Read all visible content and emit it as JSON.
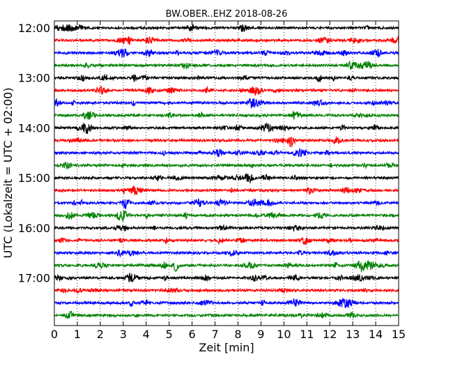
{
  "chart_data": {
    "type": "line",
    "title": "BW.OBER..EHZ 2018-08-26",
    "xlabel": "Zeit  [min]",
    "ylabel": "UTC (Lokalzeit = UTC + 02:00)",
    "xlim": [
      0,
      15
    ],
    "x_ticks": [
      "0",
      "1",
      "2",
      "3",
      "4",
      "5",
      "6",
      "7",
      "8",
      "9",
      "10",
      "11",
      "12",
      "13",
      "14",
      "15"
    ],
    "y_tick_labels": [
      "12:00",
      "13:00",
      "14:00",
      "15:00",
      "16:00",
      "17:00"
    ],
    "grid": "vertical dotted",
    "trace_colors": [
      "#000000",
      "#ff0000",
      "#0000ff",
      "#008000"
    ],
    "series": [
      {
        "start": "12:00",
        "color": "#000000"
      },
      {
        "start": "12:15",
        "color": "#ff0000"
      },
      {
        "start": "12:30",
        "color": "#0000ff"
      },
      {
        "start": "12:45",
        "color": "#008000"
      },
      {
        "start": "13:00",
        "color": "#000000"
      },
      {
        "start": "13:15",
        "color": "#ff0000"
      },
      {
        "start": "13:30",
        "color": "#0000ff"
      },
      {
        "start": "13:45",
        "color": "#008000"
      },
      {
        "start": "14:00",
        "color": "#000000"
      },
      {
        "start": "14:15",
        "color": "#ff0000"
      },
      {
        "start": "14:30",
        "color": "#0000ff"
      },
      {
        "start": "14:45",
        "color": "#008000"
      },
      {
        "start": "15:00",
        "color": "#000000"
      },
      {
        "start": "15:15",
        "color": "#ff0000"
      },
      {
        "start": "15:30",
        "color": "#0000ff"
      },
      {
        "start": "15:45",
        "color": "#008000"
      },
      {
        "start": "16:00",
        "color": "#000000"
      },
      {
        "start": "16:15",
        "color": "#ff0000"
      },
      {
        "start": "16:30",
        "color": "#0000ff"
      },
      {
        "start": "16:45",
        "color": "#008000"
      },
      {
        "start": "17:00",
        "color": "#000000"
      },
      {
        "start": "17:15",
        "color": "#ff0000"
      },
      {
        "start": "17:30",
        "color": "#0000ff"
      },
      {
        "start": "17:45",
        "color": "#008000"
      }
    ]
  }
}
